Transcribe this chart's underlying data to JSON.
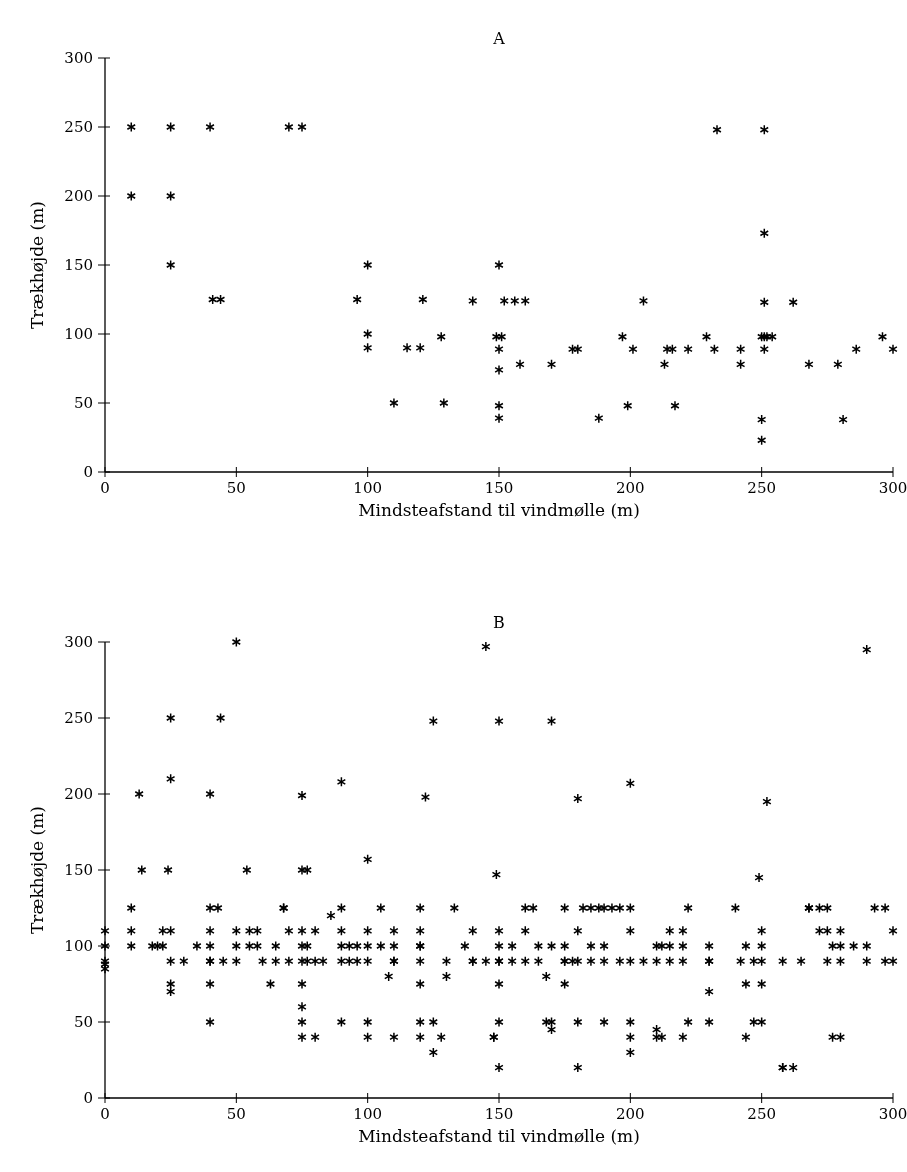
{
  "chart_data": [
    {
      "type": "scatter",
      "title": "A",
      "xlabel": "Mindsteafstand til vindmølle (m)",
      "ylabel": "Trækhøjde (m)",
      "xlim": [
        0,
        300
      ],
      "ylim": [
        0,
        300
      ],
      "xticks": [
        0,
        50,
        100,
        150,
        200,
        250,
        300
      ],
      "yticks": [
        0,
        50,
        100,
        150,
        200,
        250,
        300
      ],
      "marker": "cross",
      "series": [
        {
          "color": "#000000",
          "x": [
            10,
            25,
            40,
            70,
            75,
            10,
            25,
            25,
            41,
            44,
            100,
            100,
            100,
            96,
            121,
            115,
            120,
            128,
            110,
            129,
            233,
            251,
            251,
            150,
            140,
            152,
            156,
            160,
            205,
            251,
            262,
            149,
            151,
            150,
            158,
            170,
            150,
            150,
            150,
            188,
            178,
            180,
            197,
            201,
            199,
            214,
            216,
            213,
            217,
            222,
            229,
            232,
            242,
            242,
            250,
            252,
            254,
            251,
            251,
            250,
            250,
            268,
            279,
            281,
            286,
            296,
            300
          ],
          "values": [
            250,
            250,
            250,
            250,
            250,
            200,
            200,
            150,
            125,
            125,
            150,
            100,
            90,
            125,
            125,
            90,
            90,
            98,
            50,
            50,
            248,
            248,
            173,
            150,
            124,
            124,
            124,
            124,
            124,
            123,
            123,
            98,
            98,
            89,
            78,
            78,
            74,
            48,
            39,
            39,
            89,
            89,
            98,
            89,
            48,
            89,
            89,
            78,
            48,
            89,
            98,
            89,
            89,
            78,
            98,
            98,
            98,
            98,
            89,
            38,
            23,
            78,
            78,
            38,
            89,
            98,
            89
          ]
        }
      ]
    },
    {
      "type": "scatter",
      "title": "B",
      "xlabel": "Mindsteafstand til vindmølle (m)",
      "ylabel": "Trækhøjde (m)",
      "xlim": [
        0,
        300
      ],
      "ylim": [
        0,
        300
      ],
      "xticks": [
        0,
        50,
        100,
        150,
        200,
        250,
        300
      ],
      "yticks": [
        0,
        50,
        100,
        150,
        200,
        250,
        300
      ],
      "marker": "cross",
      "series": [
        {
          "color": "#000000",
          "x": [
            50,
            25,
            44,
            25,
            13,
            40,
            75,
            14,
            24,
            54,
            75,
            77,
            145,
            125,
            150,
            170,
            90,
            122,
            180,
            200,
            100,
            149,
            290,
            252,
            249,
            0,
            0,
            0,
            0,
            0,
            10,
            10,
            10,
            18,
            20,
            22,
            22,
            25,
            25,
            25,
            25,
            30,
            35,
            40,
            40,
            40,
            40,
            40,
            40,
            40,
            43,
            45,
            50,
            50,
            50,
            55,
            55,
            58,
            58,
            60,
            63,
            65,
            65,
            68,
            68,
            70,
            70,
            75,
            75,
            75,
            75,
            75,
            75,
            75,
            77,
            77,
            80,
            80,
            80,
            83,
            86,
            90,
            90,
            90,
            90,
            90,
            93,
            93,
            96,
            96,
            100,
            100,
            100,
            100,
            100,
            105,
            105,
            108,
            110,
            110,
            110,
            110,
            110,
            120,
            120,
            120,
            120,
            120,
            120,
            120,
            120,
            125,
            125,
            128,
            130,
            130,
            133,
            137,
            140,
            140,
            140,
            145,
            148,
            148,
            150,
            150,
            150,
            150,
            150,
            150,
            150,
            155,
            155,
            160,
            160,
            160,
            163,
            165,
            165,
            168,
            168,
            170,
            170,
            170,
            175,
            175,
            175,
            175,
            175,
            178,
            180,
            180,
            180,
            180,
            182,
            185,
            185,
            185,
            188,
            190,
            190,
            190,
            190,
            193,
            196,
            196,
            200,
            200,
            200,
            200,
            200,
            200,
            205,
            210,
            210,
            210,
            210,
            212,
            212,
            215,
            215,
            215,
            220,
            220,
            220,
            220,
            222,
            222,
            230,
            230,
            230,
            230,
            230,
            240,
            242,
            244,
            244,
            244,
            247,
            247,
            250,
            250,
            250,
            250,
            250,
            258,
            258,
            258,
            262,
            265,
            268,
            268,
            272,
            272,
            275,
            275,
            275,
            277,
            277,
            280,
            280,
            280,
            280,
            285,
            290,
            290,
            293,
            297,
            297,
            300,
            300
          ],
          "values": [
            300,
            250,
            250,
            210,
            200,
            200,
            199,
            150,
            150,
            150,
            150,
            150,
            297,
            248,
            248,
            248,
            208,
            198,
            197,
            207,
            157,
            147,
            295,
            195,
            145,
            110,
            100,
            90,
            88,
            85,
            125,
            110,
            100,
            100,
            100,
            110,
            100,
            110,
            90,
            75,
            70,
            90,
            100,
            125,
            110,
            100,
            90,
            90,
            75,
            50,
            125,
            90,
            110,
            100,
            90,
            110,
            100,
            110,
            100,
            90,
            75,
            100,
            90,
            125,
            125,
            110,
            90,
            110,
            100,
            90,
            75,
            60,
            50,
            40,
            100,
            90,
            110,
            90,
            40,
            90,
            120,
            125,
            110,
            100,
            90,
            50,
            100,
            90,
            100,
            90,
            110,
            100,
            90,
            50,
            40,
            125,
            100,
            80,
            110,
            100,
            90,
            90,
            40,
            125,
            110,
            100,
            100,
            90,
            75,
            50,
            40,
            50,
            30,
            40,
            90,
            80,
            125,
            100,
            110,
            90,
            90,
            90,
            40,
            40,
            110,
            100,
            90,
            90,
            75,
            50,
            20,
            100,
            90,
            125,
            110,
            90,
            125,
            100,
            90,
            80,
            50,
            100,
            50,
            45,
            125,
            100,
            90,
            90,
            75,
            90,
            110,
            90,
            50,
            20,
            125,
            125,
            100,
            90,
            125,
            125,
            100,
            90,
            50,
            125,
            125,
            90,
            125,
            110,
            90,
            50,
            40,
            30,
            90,
            100,
            90,
            45,
            40,
            100,
            40,
            110,
            100,
            90,
            110,
            100,
            90,
            40,
            125,
            50,
            100,
            90,
            90,
            70,
            50,
            125,
            90,
            100,
            75,
            40,
            50,
            90,
            110,
            100,
            90,
            75,
            50,
            90,
            20,
            20,
            20,
            90,
            125,
            125,
            110,
            125,
            125,
            110,
            90,
            100,
            40,
            110,
            100,
            90,
            40,
            100,
            100,
            90,
            125,
            125,
            90,
            110,
            90
          ]
        }
      ]
    }
  ]
}
